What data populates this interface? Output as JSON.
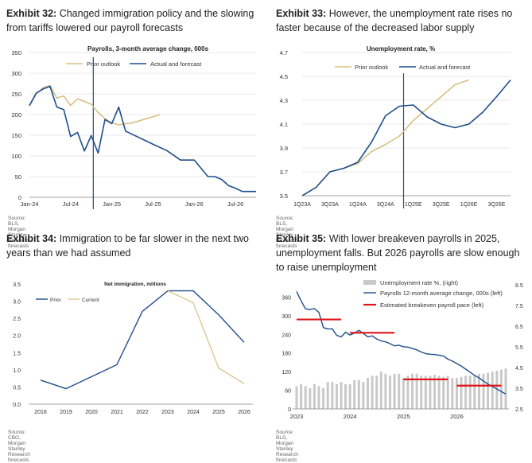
{
  "exhibits": [
    {
      "label": "Exhibit 32:",
      "title": "Changed immigration policy and the slowing from tariffs lowered our payroll forecasts",
      "source": "Source: BLS, Morgan Stanley Research forecasts"
    },
    {
      "label": "Exhibit 33:",
      "title": "However, the unemployment rate rises no faster because of the decreased labor supply",
      "source": "Source: BLS, Morgan Stanley Research forecasts"
    },
    {
      "label": "Exhibit 34:",
      "title": "Immigration to be far slower in the next two years than we had assumed",
      "source": "Source: CBO, Morgan Stanley Research forecasts"
    },
    {
      "label": "Exhibit 35:",
      "title": "With lower breakeven payrolls in 2025, unemployment falls. But 2026 payrolls are slow enough to raise unemployment",
      "source": "Source: BLS, Morgan Stanley Research forecasts"
    }
  ],
  "colors": {
    "navy": "#1f4e8c",
    "gold": "#d6c084",
    "red": "#e0141a",
    "bars": "#c9c9c9"
  },
  "chart_data": [
    {
      "type": "line",
      "title": "Payrolls, 3-month average change, 000s",
      "ylim": [
        0,
        350
      ],
      "yticks": [
        "0",
        "50",
        "100",
        "150",
        "200",
        "250",
        "300",
        "350"
      ],
      "xlim": [
        0,
        33
      ],
      "xticks": [
        {
          "x": 0,
          "label": "Jan-24"
        },
        {
          "x": 6,
          "label": "Jul-24"
        },
        {
          "x": 12,
          "label": "Jan-25"
        },
        {
          "x": 18,
          "label": "Jul-25"
        },
        {
          "x": 24,
          "label": "Jan-26"
        },
        {
          "x": 30,
          "label": "Jul-26"
        }
      ],
      "vline_x": 9.3,
      "series": [
        {
          "name": "Prior outlook",
          "color": "gold",
          "points": [
            [
              0,
              220
            ],
            [
              1,
              250
            ],
            [
              2,
              265
            ],
            [
              3,
              270
            ],
            [
              4,
              240
            ],
            [
              5,
              245
            ],
            [
              6,
              222
            ],
            [
              7,
              238
            ],
            [
              8,
              232
            ],
            [
              9,
              225
            ],
            [
              10,
              205
            ],
            [
              11,
              190
            ],
            [
              12,
              180
            ],
            [
              13,
              175
            ],
            [
              14,
              178
            ],
            [
              15,
              180
            ],
            [
              16,
              185
            ],
            [
              17,
              190
            ],
            [
              18,
              195
            ],
            [
              19,
              200
            ]
          ]
        },
        {
          "name": "Actual and forecast",
          "color": "navy",
          "points": [
            [
              0,
              222
            ],
            [
              1,
              252
            ],
            [
              2,
              262
            ],
            [
              3,
              268
            ],
            [
              4,
              218
            ],
            [
              5,
              212
            ],
            [
              6,
              147
            ],
            [
              7,
              157
            ],
            [
              8,
              112
            ],
            [
              9,
              149
            ],
            [
              10,
              107
            ],
            [
              11,
              188
            ],
            [
              12,
              178
            ],
            [
              13,
              218
            ],
            [
              14,
              160
            ],
            [
              18,
              128
            ],
            [
              20,
              113
            ],
            [
              22,
              90
            ],
            [
              24,
              90
            ],
            [
              26,
              50
            ],
            [
              27,
              50
            ],
            [
              28,
              43
            ],
            [
              29,
              28
            ],
            [
              30,
              22
            ],
            [
              31,
              14
            ],
            [
              32,
              14
            ],
            [
              33,
              14
            ]
          ]
        }
      ]
    },
    {
      "type": "line",
      "title": "Unemployment rate, %",
      "ylim": [
        3.5,
        4.7
      ],
      "yticks": [
        "3.5",
        "3.7",
        "3.9",
        "4.1",
        "4.3",
        "4.5",
        "4.7"
      ],
      "xlim": [
        0,
        15
      ],
      "xticks": [
        "1Q23A",
        "3Q23A",
        "1Q24A",
        "3Q24A",
        "1Q25E",
        "3Q25E",
        "1Q26E",
        "3Q26E"
      ],
      "vline_x": 7.3,
      "series": [
        {
          "name": "Prior outlook",
          "color": "gold",
          "points": [
            [
              0,
              3.5
            ],
            [
              1,
              3.57
            ],
            [
              2,
              3.7
            ],
            [
              3,
              3.73
            ],
            [
              4,
              3.77
            ],
            [
              5,
              3.87
            ],
            [
              6,
              3.93
            ],
            [
              7,
              4.0
            ],
            [
              8,
              4.13
            ],
            [
              9,
              4.23
            ],
            [
              10,
              4.33
            ],
            [
              11,
              4.43
            ],
            [
              12,
              4.47
            ]
          ]
        },
        {
          "name": "Actual and forecast",
          "color": "navy",
          "points": [
            [
              0,
              3.5
            ],
            [
              1,
              3.57
            ],
            [
              2,
              3.7
            ],
            [
              3,
              3.73
            ],
            [
              4,
              3.78
            ],
            [
              5,
              3.95
            ],
            [
              6,
              4.17
            ],
            [
              7,
              4.25
            ],
            [
              8,
              4.26
            ],
            [
              9,
              4.16
            ],
            [
              10,
              4.1
            ],
            [
              11,
              4.07
            ],
            [
              12,
              4.1
            ],
            [
              13,
              4.2
            ],
            [
              14,
              4.33
            ],
            [
              15,
              4.47
            ]
          ]
        }
      ]
    },
    {
      "type": "line",
      "title": "Net immigration, millions",
      "ylim": [
        0,
        3.5
      ],
      "yticks": [
        "0.0",
        "0.5",
        "1.0",
        "1.5",
        "2.0",
        "2.5",
        "3.0",
        "3.5"
      ],
      "categories": [
        "2018",
        "2019",
        "2020",
        "2021",
        "2022",
        "2023",
        "2024",
        "2025",
        "2026"
      ],
      "series": [
        {
          "name": "Prior",
          "color": "navy",
          "values": [
            0.7,
            0.45,
            0.8,
            1.15,
            2.7,
            3.3,
            3.3,
            2.6,
            1.8
          ]
        },
        {
          "name": "Current",
          "color": "gold",
          "values": [
            null,
            null,
            null,
            null,
            null,
            3.3,
            2.95,
            1.05,
            0.6
          ]
        }
      ]
    },
    {
      "type": "bar+line",
      "ylim_left": [
        0,
        420
      ],
      "yticks_left": [
        "0",
        "60",
        "120",
        "180",
        "240",
        "300",
        "360"
      ],
      "ylim_right": [
        2.5,
        8.5
      ],
      "yticks_right": [
        "2.5",
        "3.5",
        "4.5",
        "5.5",
        "6.5",
        "7.5",
        "8.5"
      ],
      "xlim": [
        0,
        47
      ],
      "xticks": [
        {
          "x": 0,
          "label": "2023"
        },
        {
          "x": 12,
          "label": "2024"
        },
        {
          "x": 24,
          "label": "2025"
        },
        {
          "x": 36,
          "label": "2026"
        }
      ],
      "series": [
        {
          "name": "Unemployment rate %, (right)",
          "color": "bars",
          "kind": "bar",
          "values": [
            3.6,
            3.7,
            3.6,
            3.5,
            3.7,
            3.6,
            3.5,
            3.8,
            3.8,
            3.7,
            3.8,
            3.7,
            3.7,
            3.9,
            3.9,
            3.8,
            4.0,
            4.1,
            4.1,
            4.3,
            4.2,
            4.1,
            4.2,
            4.2,
            4.0,
            4.1,
            4.2,
            4.2,
            4.1,
            4.1,
            4.1,
            4.15,
            4.1,
            4.05,
            4.1,
            4.0,
            4.0,
            4.05,
            4.1,
            4.1,
            4.15,
            4.2,
            4.2,
            4.25,
            4.3,
            4.35,
            4.4,
            4.45
          ]
        },
        {
          "name": "Payrolls 12-month average change, 000s (left)",
          "color": "navy",
          "kind": "line",
          "values": [
            378,
            348,
            322,
            320,
            323,
            311,
            262,
            257,
            258,
            237,
            232,
            247,
            238,
            244,
            253,
            243,
            232,
            235,
            225,
            219,
            216,
            210,
            203,
            205,
            200,
            199,
            195,
            190,
            183,
            178,
            176,
            175,
            173,
            170,
            160,
            154,
            146,
            138,
            128,
            118,
            108,
            100,
            90,
            80,
            72,
            64,
            56,
            48
          ]
        },
        {
          "name": "Estimated breakeven payroll pace  (left)",
          "color": "red",
          "kind": "segments",
          "segments": [
            [
              0,
              10,
              288
            ],
            [
              12,
              22,
              245
            ],
            [
              24,
              34,
              95
            ],
            [
              36,
              46,
              75
            ]
          ]
        }
      ]
    }
  ],
  "legend_labels": {
    "c1_prior": "Prior outlook",
    "c1_actual": "Actual and forecast",
    "c2_prior": "Prior outlook",
    "c2_actual": "Actual and forecast",
    "c3_prior": "Prior",
    "c3_current": "Current",
    "c4_bars": "Unemployment rate %, (right)",
    "c4_line": "Payrolls 12-month average change, 000s (left)",
    "c4_red": "Estimated breakeven payroll pace  (left)"
  }
}
